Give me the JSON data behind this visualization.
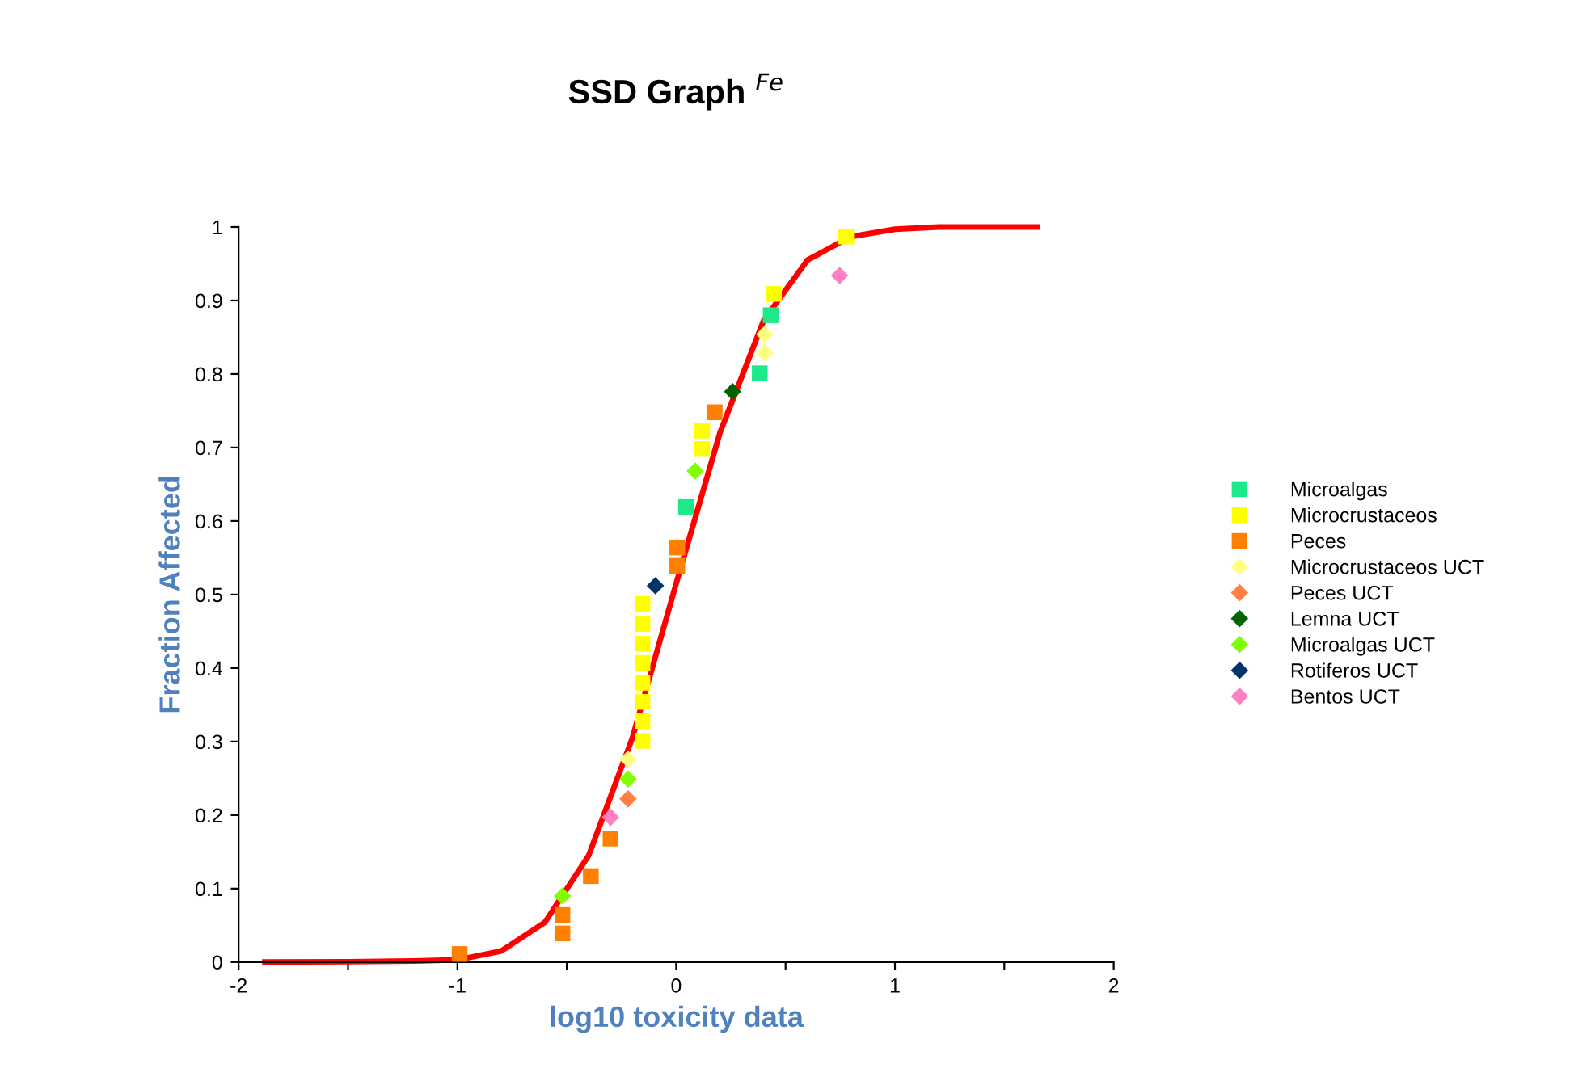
{
  "chart_data": {
    "type": "scatter",
    "title": "SSD Graph $^{Fe}$",
    "xlabel": "log10 toxicity data",
    "ylabel": "Fraction Affected",
    "xlim": [
      -2,
      2
    ],
    "ylim": [
      0,
      1
    ],
    "xticks": [
      -2,
      {
        "value": -1.5,
        "label": null
      },
      -1,
      {
        "value": -0.5,
        "label": null
      },
      0,
      {
        "value": 0.5,
        "label": null
      },
      1,
      {
        "value": 1.5,
        "label": null
      },
      2
    ],
    "yticks": [
      0,
      0.1,
      0.2,
      0.3,
      0.4,
      0.5,
      0.6,
      0.7,
      0.8,
      0.9,
      1
    ],
    "grid": false,
    "legend": "right",
    "series": [
      {
        "type": "line",
        "color": "#ff0000",
        "marker": "none",
        "line_style": "solid",
        "x": [
          -1.88,
          -1.5,
          -1.2,
          -1.0,
          -0.8,
          -0.6,
          -0.4,
          -0.2,
          0,
          0.2,
          0.4,
          0.6,
          0.8,
          1.0,
          1.2,
          1.65
        ],
        "values": [
          0,
          0.0005,
          0.0015,
          0.003,
          0.015,
          0.054,
          0.145,
          0.305,
          0.515,
          0.72,
          0.873,
          0.955,
          0.987,
          0.997,
          1,
          1
        ]
      },
      {
        "name": "Microalgas",
        "color": "#1de98b",
        "marker": "square",
        "x": [
          0.045,
          0.382,
          0.432
        ],
        "values": [
          0.619,
          0.801,
          0.88
        ]
      },
      {
        "name": "Microcrustaceos",
        "color": "#ffff00",
        "marker": "square",
        "x": [
          -0.154,
          -0.154,
          -0.154,
          -0.154,
          -0.154,
          -0.154,
          -0.154,
          -0.154,
          0.119,
          0.119,
          0.447,
          0.777
        ],
        "values": [
          0.301,
          0.328,
          0.354,
          0.38,
          0.407,
          0.433,
          0.46,
          0.487,
          0.698,
          0.723,
          0.909,
          0.987
        ]
      },
      {
        "name": "Peces",
        "color": "#ff7f00",
        "marker": "square",
        "x": [
          -0.99,
          -0.52,
          -0.52,
          -0.39,
          -0.3,
          0.005,
          0.005,
          0.176
        ],
        "values": [
          0.011,
          0.039,
          0.064,
          0.117,
          0.168,
          0.539,
          0.564,
          0.748
        ]
      },
      {
        "name": "Microcrustaceos UCT",
        "color": "#ffff80",
        "marker": "diamond",
        "x": [
          -0.22,
          0.405,
          0.405
        ],
        "values": [
          0.276,
          0.829,
          0.854
        ]
      },
      {
        "name": "Peces UCT",
        "color": "#ff8040",
        "marker": "diamond",
        "x": [
          -0.22
        ],
        "values": [
          0.222
        ]
      },
      {
        "name": "Lemna UCT",
        "color": "#006400",
        "marker": "diamond",
        "x": [
          0.258
        ],
        "values": [
          0.776
        ]
      },
      {
        "name": "Microalgas UCT",
        "color": "#80ff00",
        "marker": "diamond",
        "x": [
          -0.52,
          -0.22,
          0.087
        ],
        "values": [
          0.09,
          0.249,
          0.668
        ]
      },
      {
        "name": "Rotiferos UCT",
        "color": "#003366",
        "marker": "diamond",
        "x": [
          -0.095
        ],
        "values": [
          0.512
        ]
      },
      {
        "name": "Bentos UCT",
        "color": "#ff80c0",
        "marker": "diamond",
        "x": [
          -0.3,
          0.747
        ],
        "values": [
          0.197,
          0.934
        ]
      }
    ]
  }
}
